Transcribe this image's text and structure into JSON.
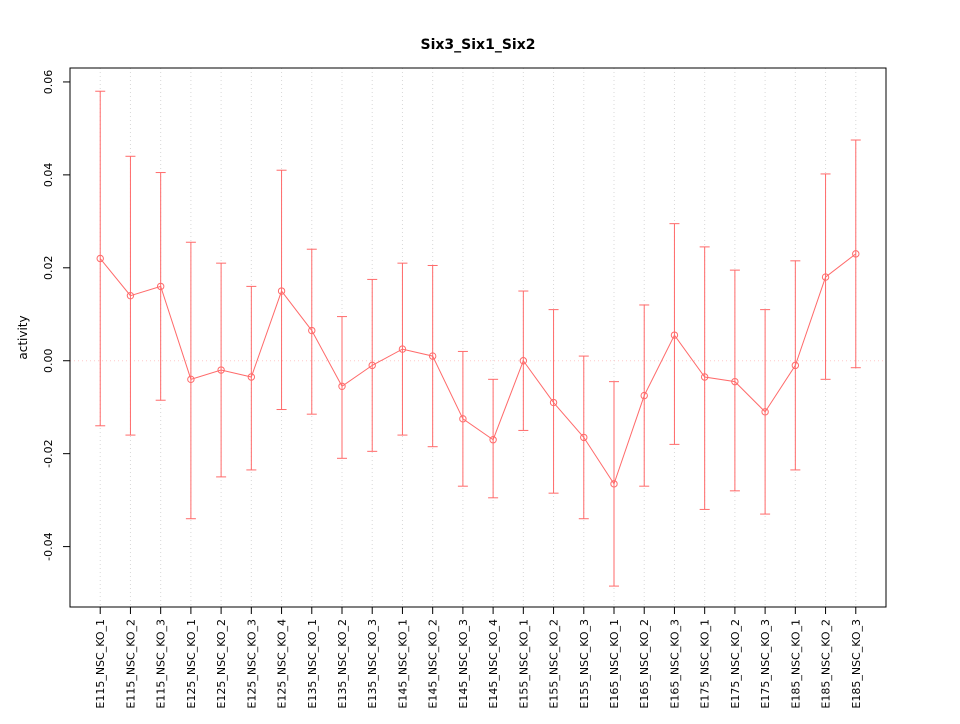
{
  "figure": {
    "background": "#ffffff",
    "border_color": "#000000"
  },
  "chart_data": {
    "type": "line",
    "subtype": "means-with-error-bars",
    "title": "Six3_Six1_Six2",
    "xlabel": "",
    "ylabel": "activity",
    "ylim": [
      -0.053,
      0.063
    ],
    "yticks": [
      -0.04,
      -0.02,
      0,
      0.02,
      0.04,
      0.06
    ],
    "ytick_labels": [
      "-0.04",
      "-0.02",
      "0.00",
      "0.02",
      "0.04",
      "0.06"
    ],
    "grid": {
      "vertical_dotted": true,
      "horizontal_zero_line": true
    },
    "legend_position": "none",
    "series_color": "#ff6a6a",
    "grid_color": "#d8d8d8",
    "zero_line_color": "#ffc8c8",
    "point_style": "open-circle",
    "categories": [
      "E115_NSC_KO_1",
      "E115_NSC_KO_2",
      "E115_NSC_KO_3",
      "E125_NSC_KO_1",
      "E125_NSC_KO_2",
      "E125_NSC_KO_3",
      "E125_NSC_KO_4",
      "E135_NSC_KO_1",
      "E135_NSC_KO_2",
      "E135_NSC_KO_3",
      "E145_NSC_KO_1",
      "E145_NSC_KO_2",
      "E145_NSC_KO_3",
      "E145_NSC_KO_4",
      "E155_NSC_KO_1",
      "E155_NSC_KO_2",
      "E155_NSC_KO_3",
      "E165_NSC_KO_1",
      "E165_NSC_KO_2",
      "E165_NSC_KO_3",
      "E175_NSC_KO_1",
      "E175_NSC_KO_2",
      "E175_NSC_KO_3",
      "E185_NSC_KO_1",
      "E185_NSC_KO_2",
      "E185_NSC_KO_3"
    ],
    "series": [
      {
        "name": "activity",
        "means": [
          0.022,
          0.014,
          0.016,
          -0.004,
          -0.002,
          -0.0035,
          0.015,
          0.0065,
          -0.0055,
          -0.001,
          0.0025,
          0.001,
          -0.0125,
          -0.017,
          0.0,
          -0.009,
          -0.0165,
          -0.0265,
          -0.0075,
          0.0055,
          -0.0035,
          -0.0045,
          -0.011,
          -0.001,
          0.018,
          0.023
        ],
        "upper": [
          0.058,
          0.044,
          0.0405,
          0.0255,
          0.021,
          0.016,
          0.041,
          0.024,
          0.0095,
          0.0175,
          0.021,
          0.0205,
          0.002,
          -0.004,
          0.015,
          0.011,
          0.001,
          -0.0045,
          0.012,
          0.0295,
          0.0245,
          0.0195,
          0.011,
          0.0215,
          0.0402,
          0.0475
        ],
        "lower": [
          -0.014,
          -0.016,
          -0.0085,
          -0.034,
          -0.025,
          -0.0235,
          -0.0105,
          -0.0115,
          -0.021,
          -0.0195,
          -0.016,
          -0.0185,
          -0.027,
          -0.0295,
          -0.015,
          -0.0285,
          -0.034,
          -0.0485,
          -0.027,
          -0.018,
          -0.032,
          -0.028,
          -0.033,
          -0.0235,
          -0.004,
          -0.0015
        ]
      }
    ]
  }
}
